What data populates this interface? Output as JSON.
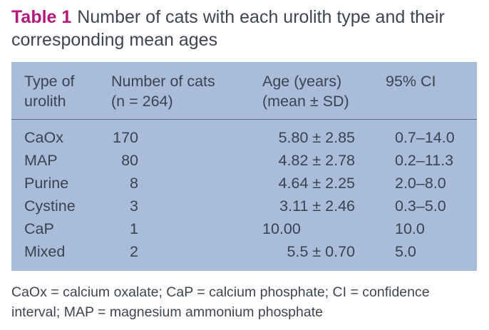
{
  "table": {
    "label": "Table 1",
    "caption": "Number of cats with each urolith type and their corresponding mean ages",
    "headers": {
      "type_line1": "Type of",
      "type_line2": "urolith",
      "count_line1": "Number of cats",
      "count_line2": "(n = 264)",
      "age_line1": "Age (years)",
      "age_line2": "(mean ± SD)",
      "ci": "95% CI"
    },
    "rows": [
      {
        "type": "CaOx",
        "count": "170",
        "age": "5.80 ± 2.85",
        "ci": "0.7–14.0"
      },
      {
        "type": "MAP",
        "count": "80",
        "age": "4.82 ± 2.78",
        "ci": "0.2–11.3"
      },
      {
        "type": "Purine",
        "count": "8",
        "age": "4.64 ± 2.25",
        "ci": "2.0–8.0"
      },
      {
        "type": "Cystine",
        "count": "3",
        "age": "3.11 ± 2.46",
        "ci": "0.3–5.0"
      },
      {
        "type": "CaP",
        "count": "1",
        "age": "10.00",
        "ci": "10.0"
      },
      {
        "type": "Mixed",
        "count": "2",
        "age": "5.5 ± 0.70",
        "ci": "5.0"
      }
    ],
    "footnote": "CaOx = calcium oxalate; CaP = calcium phosphate; CI = confidence interval; MAP = magnesium ammonium phosphate"
  },
  "colors": {
    "label": "#b3197a",
    "table_background": "#a9bddb"
  }
}
